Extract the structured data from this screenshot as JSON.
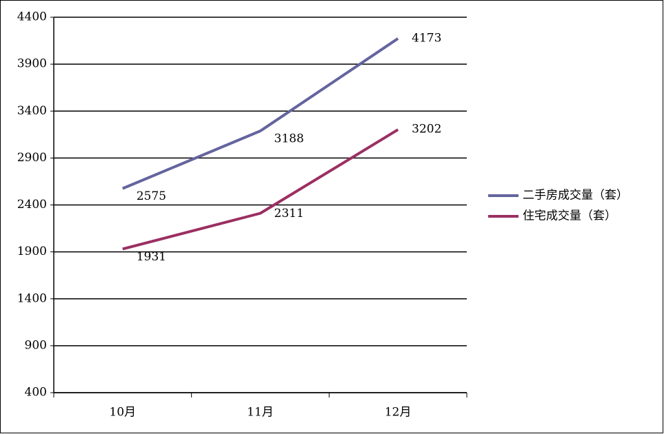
{
  "chart_data": {
    "type": "line",
    "categories": [
      "10月",
      "11月",
      "12月"
    ],
    "series": [
      {
        "name": "二手房成交量（套）",
        "color": "#64649e",
        "values": [
          2575,
          3188,
          4173
        ]
      },
      {
        "name": "住宅成交量（套）",
        "color": "#9b2f62",
        "values": [
          1931,
          2311,
          3202
        ]
      }
    ],
    "ylim": [
      400,
      4400
    ],
    "yticks": [
      400,
      900,
      1400,
      1900,
      2400,
      2900,
      3400,
      3900,
      4400
    ],
    "grid": true,
    "legend": "right"
  }
}
